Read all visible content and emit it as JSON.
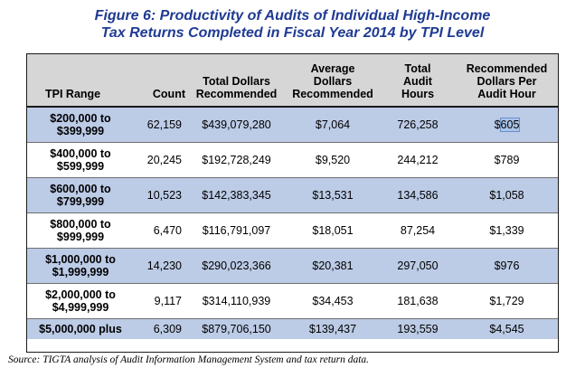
{
  "figure": {
    "title_line1": "Figure 6:  Productivity of Audits of Individual High-Income",
    "title_line2": "Tax Returns Completed in Fiscal Year 2014 by TPI Level"
  },
  "table": {
    "headers": {
      "tpi_range": "TPI Range",
      "count": "Count",
      "total_dollars_line1": "Total Dollars",
      "total_dollars_line2": "Recommended",
      "avg_dollars_line1": "Average",
      "avg_dollars_line2": "Dollars",
      "avg_dollars_line3": "Recommended",
      "total_hours_line1": "Total",
      "total_hours_line2": "Audit",
      "total_hours_line3": "Hours",
      "rec_per_hour_line1": "Recommended",
      "rec_per_hour_line2": "Dollars Per",
      "rec_per_hour_line3": "Audit Hour"
    },
    "rows": [
      {
        "range_line1": "$200,000 to",
        "range_line2": "$399,999",
        "count": "62,159",
        "total_dollars": "$439,079,280",
        "avg_dollars": "$7,064",
        "total_hours": "726,258",
        "rec_per_hour_prefix": "$",
        "rec_per_hour_selected": "605"
      },
      {
        "range_line1": "$400,000 to",
        "range_line2": "$599,999",
        "count": "20,245",
        "total_dollars": "$192,728,249",
        "avg_dollars": "$9,520",
        "total_hours": "244,212",
        "rec_per_hour": "$789"
      },
      {
        "range_line1": "$600,000 to",
        "range_line2": "$799,999",
        "count": "10,523",
        "total_dollars": "$142,383,345",
        "avg_dollars": "$13,531",
        "total_hours": "134,586",
        "rec_per_hour": "$1,058"
      },
      {
        "range_line1": "$800,000 to",
        "range_line2": "$999,999",
        "count": "6,470",
        "total_dollars": "$116,791,097",
        "avg_dollars": "$18,051",
        "total_hours": "87,254",
        "rec_per_hour": "$1,339"
      },
      {
        "range_line1": "$1,000,000 to",
        "range_line2": "$1,999,999",
        "count": "14,230",
        "total_dollars": "$290,023,366",
        "avg_dollars": "$20,381",
        "total_hours": "297,050",
        "rec_per_hour": "$976"
      },
      {
        "range_line1": "$2,000,000 to",
        "range_line2": "$4,999,999",
        "count": "9,117",
        "total_dollars": "$314,110,939",
        "avg_dollars": "$34,453",
        "total_hours": "181,638",
        "rec_per_hour": "$1,729"
      },
      {
        "range_line1": "$5,000,000 plus",
        "count": "6,309",
        "total_dollars": "$879,706,150",
        "avg_dollars": "$139,437",
        "total_hours": "193,559",
        "rec_per_hour": "$4,545"
      }
    ]
  },
  "source": "Source:  TIGTA analysis of Audit Information Management System and tax return data."
}
